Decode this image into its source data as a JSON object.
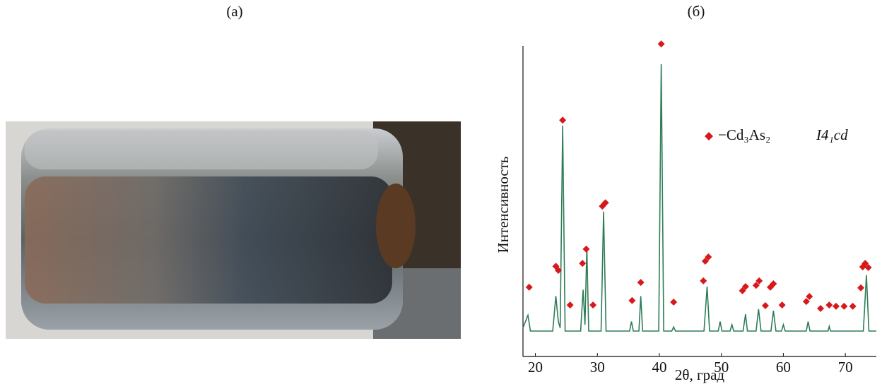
{
  "panels": {
    "a": "(а)",
    "b": "(б)"
  },
  "chart_data": {
    "type": "line",
    "xlabel": "2θ, град",
    "ylabel": "Интенсивность",
    "annotation": "I4₁cd",
    "color": "#2e7d57",
    "x": [
      18,
      18.8,
      19.2,
      22.8,
      23.3,
      23.7,
      24.0,
      24.4,
      24.8,
      27.3,
      27.7,
      28.0,
      28.3,
      28.6,
      30.6,
      31.0,
      31.4,
      35.2,
      35.5,
      35.8,
      36.7,
      37.0,
      37.3,
      39.9,
      40.3,
      40.7,
      42.0,
      42.3,
      42.6,
      47.2,
      47.7,
      48.1,
      49.5,
      49.8,
      50.1,
      51.4,
      51.7,
      52.0,
      53.5,
      53.9,
      54.2,
      55.6,
      56.0,
      56.4,
      58.0,
      58.4,
      58.8,
      59.7,
      60.0,
      60.3,
      63.7,
      64.0,
      64.3,
      67.2,
      67.4,
      67.6,
      72.9,
      73.4,
      73.8,
      75
    ],
    "values": [
      9,
      13,
      8,
      8,
      19,
      11,
      9,
      72.7,
      8,
      8,
      21,
      10,
      34.4,
      8,
      8,
      45.6,
      8,
      8,
      11,
      8,
      8,
      19,
      8,
      8,
      92,
      8,
      8,
      9.3,
      8,
      8,
      22,
      8,
      8,
      11,
      8,
      8,
      10,
      8,
      8,
      13.3,
      8,
      8,
      14.9,
      8,
      8,
      14.4,
      8,
      8,
      10,
      8,
      8,
      11,
      8,
      8,
      9.5,
      8,
      8,
      25.6,
      8,
      8
    ],
    "markers": {
      "name": "−Cd₃As₂",
      "color": "#d7191c",
      "x": [
        19.0,
        23.3,
        23.7,
        24.4,
        25.6,
        27.6,
        28.2,
        29.3,
        30.8,
        31.3,
        35.6,
        37.0,
        40.3,
        42.3,
        47.1,
        47.4,
        47.9,
        53.4,
        53.9,
        55.6,
        56.1,
        57.1,
        57.9,
        58.4,
        59.8,
        63.7,
        64.2,
        66.0,
        67.4,
        68.5,
        69.8,
        71.2,
        72.5,
        72.8,
        73.2,
        73.7
      ],
      "values": [
        21.8,
        28.4,
        27.1,
        74.4,
        16.2,
        29.3,
        33.8,
        16.2,
        47.3,
        48.4,
        17.6,
        23.3,
        98.4,
        17.1,
        23.8,
        30,
        31.3,
        20.7,
        22,
        22.4,
        23.8,
        16,
        21.8,
        22.9,
        16.2,
        17.3,
        18.9,
        15.1,
        16.2,
        15.8,
        15.8,
        15.8,
        21.6,
        28.2,
        29.3,
        28
      ]
    },
    "xlim": [
      18,
      75
    ],
    "xticks": [
      20,
      30,
      40,
      50,
      60,
      70
    ],
    "ylim": [
      0,
      100
    ]
  }
}
